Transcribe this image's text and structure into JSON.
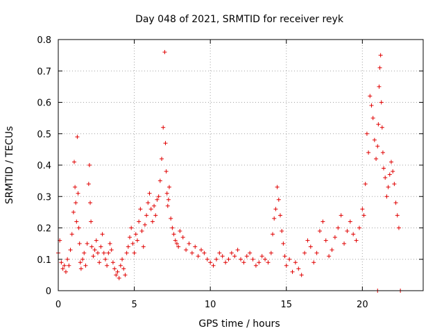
{
  "chart_data": {
    "type": "scatter",
    "title": "Day 048 of 2021, SRMTID for receiver reyk",
    "xlabel": "GPS time / hours",
    "ylabel": "SRMTID / TECUs",
    "xlim": [
      0,
      24
    ],
    "ylim": [
      0,
      0.8
    ],
    "grid": true,
    "marker": "+",
    "color": "#e00000",
    "xticks": [
      0,
      5,
      10,
      15,
      20
    ],
    "xtick_labels": [
      "0",
      "5",
      "10",
      "15",
      "20"
    ],
    "yticks": [
      0,
      0.1,
      0.2,
      0.3,
      0.4,
      0.5,
      0.6,
      0.7,
      0.8
    ],
    "ytick_labels": [
      "0",
      "0.1",
      "0.2",
      "0.3",
      "0.4",
      "0.5",
      "0.6",
      "0.7",
      "0.8"
    ],
    "series": [
      {
        "name": "SRMTID",
        "x": [
          0.0,
          0.1,
          0.2,
          0.3,
          0.4,
          0.5,
          0.6,
          0.7,
          0.8,
          0.9,
          1.0,
          1.05,
          1.1,
          1.15,
          1.2,
          1.25,
          1.3,
          1.35,
          1.4,
          1.45,
          1.5,
          1.6,
          1.7,
          1.8,
          1.9,
          2.0,
          2.05,
          2.1,
          2.15,
          2.2,
          2.3,
          2.4,
          2.5,
          2.6,
          2.7,
          2.8,
          2.9,
          3.0,
          3.1,
          3.2,
          3.3,
          3.4,
          3.5,
          3.6,
          3.7,
          3.8,
          3.9,
          4.0,
          4.1,
          4.2,
          4.3,
          4.4,
          4.5,
          4.6,
          4.7,
          4.8,
          4.9,
          5.0,
          5.1,
          5.2,
          5.3,
          5.4,
          5.5,
          5.6,
          5.7,
          5.8,
          5.9,
          6.0,
          6.1,
          6.2,
          6.3,
          6.4,
          6.5,
          6.6,
          6.7,
          6.8,
          6.9,
          7.0,
          7.05,
          7.1,
          7.15,
          7.2,
          7.25,
          7.3,
          7.4,
          7.5,
          7.6,
          7.7,
          7.8,
          7.9,
          8.0,
          8.2,
          8.4,
          8.6,
          8.8,
          9.0,
          9.2,
          9.4,
          9.6,
          9.8,
          10.0,
          10.2,
          10.4,
          10.6,
          10.8,
          11.0,
          11.2,
          11.4,
          11.6,
          11.8,
          12.0,
          12.2,
          12.4,
          12.6,
          12.8,
          13.0,
          13.2,
          13.4,
          13.6,
          13.8,
          14.0,
          14.1,
          14.2,
          14.3,
          14.4,
          14.5,
          14.6,
          14.7,
          14.8,
          14.9,
          15.0,
          15.2,
          15.4,
          15.6,
          15.8,
          16.0,
          16.2,
          16.4,
          16.6,
          16.8,
          17.0,
          17.2,
          17.4,
          17.6,
          17.8,
          18.0,
          18.2,
          18.4,
          18.6,
          18.8,
          19.0,
          19.2,
          19.4,
          19.6,
          19.8,
          20.0,
          20.1,
          20.2,
          20.3,
          20.4,
          20.5,
          20.6,
          20.7,
          20.8,
          20.9,
          21.0,
          21.05,
          21.1,
          21.15,
          21.2,
          21.25,
          21.3,
          21.35,
          21.4,
          21.5,
          21.6,
          21.7,
          21.8,
          21.9,
          22.0,
          22.1,
          22.2,
          22.3,
          22.4,
          21.0,
          22.5
        ],
        "y": [
          0.12,
          0.16,
          0.09,
          0.07,
          0.08,
          0.06,
          0.1,
          0.08,
          0.13,
          0.18,
          0.25,
          0.41,
          0.33,
          0.28,
          0.22,
          0.49,
          0.31,
          0.2,
          0.15,
          0.09,
          0.07,
          0.1,
          0.12,
          0.08,
          0.15,
          0.34,
          0.4,
          0.28,
          0.22,
          0.14,
          0.11,
          0.13,
          0.16,
          0.12,
          0.09,
          0.14,
          0.18,
          0.12,
          0.1,
          0.08,
          0.12,
          0.15,
          0.13,
          0.09,
          0.07,
          0.05,
          0.06,
          0.04,
          0.08,
          0.1,
          0.07,
          0.05,
          0.12,
          0.14,
          0.17,
          0.2,
          0.15,
          0.12,
          0.18,
          0.16,
          0.22,
          0.26,
          0.19,
          0.14,
          0.21,
          0.24,
          0.28,
          0.31,
          0.26,
          0.22,
          0.27,
          0.24,
          0.29,
          0.3,
          0.35,
          0.42,
          0.52,
          0.76,
          0.47,
          0.38,
          0.31,
          0.27,
          0.29,
          0.33,
          0.23,
          0.2,
          0.18,
          0.16,
          0.15,
          0.14,
          0.19,
          0.17,
          0.13,
          0.15,
          0.12,
          0.14,
          0.11,
          0.13,
          0.12,
          0.1,
          0.09,
          0.08,
          0.1,
          0.12,
          0.11,
          0.09,
          0.1,
          0.12,
          0.11,
          0.13,
          0.1,
          0.09,
          0.11,
          0.12,
          0.1,
          0.08,
          0.09,
          0.11,
          0.1,
          0.09,
          0.12,
          0.18,
          0.23,
          0.26,
          0.33,
          0.29,
          0.24,
          0.19,
          0.15,
          0.11,
          0.08,
          0.1,
          0.06,
          0.09,
          0.07,
          0.05,
          0.12,
          0.16,
          0.14,
          0.09,
          0.12,
          0.19,
          0.22,
          0.16,
          0.11,
          0.13,
          0.17,
          0.2,
          0.24,
          0.15,
          0.19,
          0.22,
          0.18,
          0.16,
          0.2,
          0.26,
          0.24,
          0.34,
          0.5,
          0.44,
          0.62,
          0.59,
          0.55,
          0.48,
          0.42,
          0.46,
          0.53,
          0.65,
          0.71,
          0.75,
          0.6,
          0.52,
          0.44,
          0.39,
          0.36,
          0.3,
          0.33,
          0.37,
          0.41,
          0.38,
          0.34,
          0.28,
          0.24,
          0.2,
          0.0,
          0.0
        ]
      }
    ]
  }
}
